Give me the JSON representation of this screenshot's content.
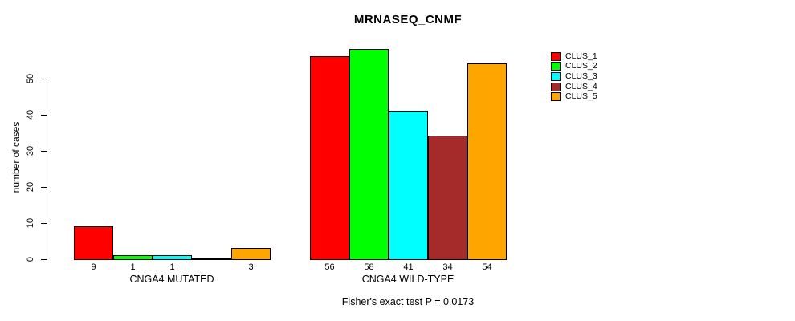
{
  "chart_data": {
    "type": "bar",
    "title": "MRNASEQ_CNMF",
    "xlabel": "",
    "ylabel": "number of cases",
    "categories": [
      "CNGA4 MUTATED",
      "CNGA4 WILD-TYPE"
    ],
    "series": [
      {
        "name": "CLUS_1",
        "color": "#FF0000",
        "values": [
          9,
          56
        ]
      },
      {
        "name": "CLUS_2",
        "color": "#00FF00",
        "values": [
          1,
          58
        ]
      },
      {
        "name": "CLUS_3",
        "color": "#00FFFF",
        "values": [
          1,
          41
        ]
      },
      {
        "name": "CLUS_4",
        "color": "#A52A2A",
        "values": [
          0,
          34
        ]
      },
      {
        "name": "CLUS_5",
        "color": "#FFA500",
        "values": [
          3,
          54
        ]
      }
    ],
    "ylim": [
      0,
      58
    ],
    "yticks": [
      0,
      10,
      20,
      30,
      40,
      50
    ],
    "bar_value_labels": true,
    "grid": false,
    "legend_position": "right",
    "annotation": "Fisher's exact test P = 0.0173"
  }
}
